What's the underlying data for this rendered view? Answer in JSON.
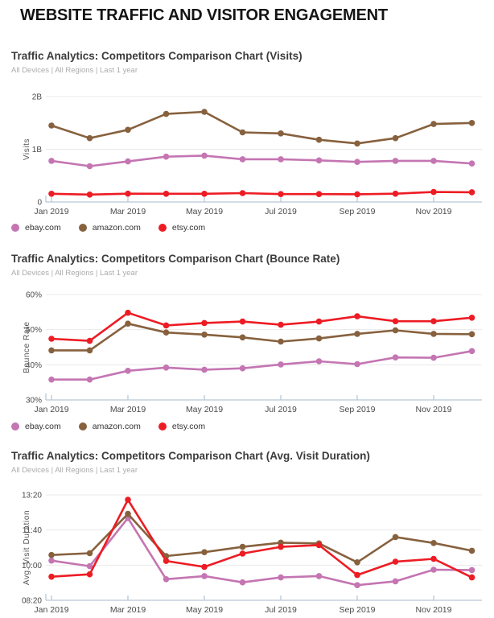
{
  "header": {
    "title": "WEBSITE TRAFFIC AND VISITOR ENGAGEMENT"
  },
  "chart_data": [
    {
      "type": "line",
      "title": "Traffic Analytics: Competitors Comparison Chart (Visits)",
      "subtitle": "All Devices | All Regions | Last 1 year",
      "ylabel": "Visits",
      "value_unit": "billions_of_visits",
      "ylim": [
        0,
        2
      ],
      "yticks": [
        0,
        1,
        2
      ],
      "ytick_labels": [
        "0",
        "1B",
        "2B"
      ],
      "categories": [
        "Jan 2019",
        "Feb 2019",
        "Mar 2019",
        "Apr 2019",
        "May 2019",
        "Jun 2019",
        "Jul 2019",
        "Aug 2019",
        "Sep 2019",
        "Oct 2019",
        "Nov 2019",
        "Dec 2019"
      ],
      "xtick_labels": [
        "Jan 2019",
        "Mar 2019",
        "May 2019",
        "Jul 2019",
        "Sep 2019",
        "Nov 2019"
      ],
      "grid": "horizontal",
      "legend_position": "bottom",
      "series": [
        {
          "name": "ebay.com",
          "color": "#c475b2",
          "values": [
            0.78,
            0.68,
            0.77,
            0.86,
            0.88,
            0.81,
            0.81,
            0.79,
            0.76,
            0.78,
            0.78,
            0.73
          ]
        },
        {
          "name": "amazon.com",
          "color": "#87613e",
          "values": [
            1.45,
            1.21,
            1.37,
            1.67,
            1.71,
            1.32,
            1.3,
            1.18,
            1.11,
            1.21,
            1.48,
            1.5
          ]
        },
        {
          "name": "etsy.com",
          "color": "#ed1c24",
          "values": [
            0.155,
            0.14,
            0.158,
            0.155,
            0.155,
            0.168,
            0.15,
            0.15,
            0.147,
            0.158,
            0.19,
            0.185
          ]
        }
      ]
    },
    {
      "type": "line",
      "title": "Traffic Analytics: Competitors Comparison Chart (Bounce Rate)",
      "subtitle": "All Devices | All Regions | Last 1 year",
      "ylabel": "Bounce Rate",
      "value_unit": "percent",
      "ylim": [
        30,
        60
      ],
      "yticks": [
        30,
        40,
        50,
        60
      ],
      "ytick_labels": [
        "30%",
        "40%",
        "50%",
        "60%"
      ],
      "categories": [
        "Jan 2019",
        "Feb 2019",
        "Mar 2019",
        "Apr 2019",
        "May 2019",
        "Jun 2019",
        "Jul 2019",
        "Aug 2019",
        "Sep 2019",
        "Oct 2019",
        "Nov 2019",
        "Dec 2019"
      ],
      "xtick_labels": [
        "Jan 2019",
        "Mar 2019",
        "May 2019",
        "Jul 2019",
        "Sep 2019",
        "Nov 2019"
      ],
      "grid": "horizontal",
      "legend_position": "bottom",
      "series": [
        {
          "name": "ebay.com",
          "color": "#c475b2",
          "values": [
            35.8,
            35.8,
            38.3,
            39.2,
            38.6,
            39.0,
            40.1,
            41.0,
            40.2,
            42.1,
            42.0,
            43.9
          ]
        },
        {
          "name": "amazon.com",
          "color": "#87613e",
          "values": [
            44.1,
            44.1,
            51.7,
            49.2,
            48.6,
            47.8,
            46.6,
            47.5,
            48.8,
            49.8,
            48.8,
            48.7
          ]
        },
        {
          "name": "etsy.com",
          "color": "#ed1c24",
          "values": [
            47.4,
            46.8,
            54.8,
            51.2,
            51.9,
            52.3,
            51.4,
            52.3,
            53.8,
            52.4,
            52.4,
            53.4
          ]
        }
      ]
    },
    {
      "type": "line",
      "title": "Traffic Analytics: Competitors Comparison Chart (Avg. Visit Duration)",
      "subtitle": "All Devices | All Regions | Last 1 year",
      "ylabel": "Avg. Visit Duration",
      "value_unit": "seconds",
      "ylim": [
        500,
        800
      ],
      "yticks": [
        500,
        600,
        700,
        800
      ],
      "ytick_labels": [
        "08:20",
        "10:00",
        "11:40",
        "13:20"
      ],
      "categories": [
        "Jan 2019",
        "Feb 2019",
        "Mar 2019",
        "Apr 2019",
        "May 2019",
        "Jun 2019",
        "Jul 2019",
        "Aug 2019",
        "Sep 2019",
        "Oct 2019",
        "Nov 2019",
        "Dec 2019"
      ],
      "xtick_labels": [
        "Jan 2019",
        "Mar 2019",
        "May 2019",
        "Jul 2019",
        "Sep 2019",
        "Nov 2019"
      ],
      "grid": "horizontal",
      "legend_position": "none",
      "series": [
        {
          "name": "ebay.com",
          "color": "#c475b2",
          "values": [
            613,
            597,
            734,
            560,
            569,
            551,
            565,
            569,
            543,
            554,
            587,
            586
          ]
        },
        {
          "name": "amazon.com",
          "color": "#87613e",
          "values": [
            629,
            634,
            746,
            626,
            637,
            652,
            664,
            662,
            608,
            680,
            663,
            641
          ]
        },
        {
          "name": "etsy.com",
          "color": "#ed1c24",
          "values": [
            567,
            574,
            786,
            612,
            595,
            633,
            652,
            657,
            572,
            610,
            618,
            565
          ]
        }
      ]
    }
  ]
}
